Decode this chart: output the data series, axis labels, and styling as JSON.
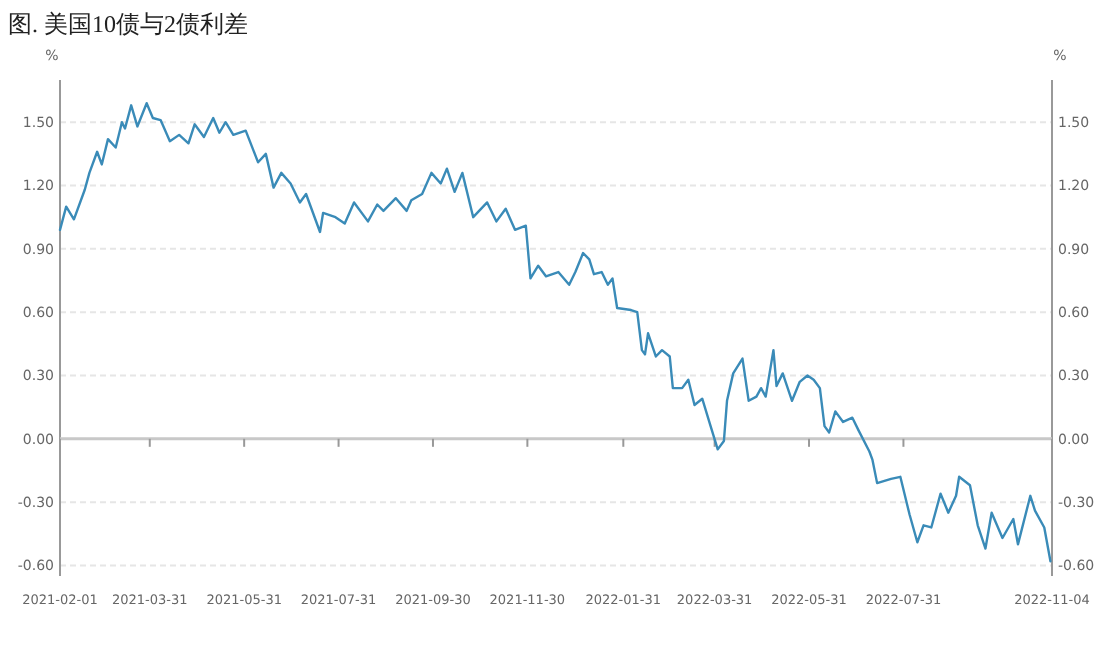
{
  "chart_data": {
    "type": "line",
    "title": "图. 美国10债与2债利差",
    "ylabel": "%",
    "y2label": "%",
    "x": [
      "2021-02-01",
      "2021-02-05",
      "2021-02-10",
      "2021-02-17",
      "2021-02-20",
      "2021-02-25",
      "2021-02-28",
      "2021-03-04",
      "2021-03-09",
      "2021-03-13",
      "2021-03-15",
      "2021-03-19",
      "2021-03-23",
      "2021-03-29",
      "2021-04-02",
      "2021-04-07",
      "2021-04-13",
      "2021-04-19",
      "2021-04-25",
      "2021-04-29",
      "2021-05-05",
      "2021-05-11",
      "2021-05-15",
      "2021-05-19",
      "2021-05-24",
      "2021-06-01",
      "2021-06-09",
      "2021-06-14",
      "2021-06-19",
      "2021-06-24",
      "2021-06-30",
      "2021-07-06",
      "2021-07-10",
      "2021-07-19",
      "2021-07-21",
      "2021-07-29",
      "2021-08-04",
      "2021-08-10",
      "2021-08-19",
      "2021-08-25",
      "2021-08-29",
      "2021-09-06",
      "2021-09-13",
      "2021-09-16",
      "2021-09-23",
      "2021-09-29",
      "2021-10-05",
      "2021-10-09",
      "2021-10-14",
      "2021-10-19",
      "2021-10-26",
      "2021-11-04",
      "2021-11-10",
      "2021-11-16",
      "2021-11-22",
      "2021-11-29",
      "2021-12-02",
      "2021-12-07",
      "2021-12-12",
      "2021-12-20",
      "2021-12-27",
      "2021-12-31",
      "2022-01-05",
      "2022-01-09",
      "2022-01-12",
      "2022-01-17",
      "2022-01-21",
      "2022-01-24",
      "2022-01-27",
      "2022-02-05",
      "2022-02-09",
      "2022-02-12",
      "2022-02-14",
      "2022-02-16",
      "2022-02-21",
      "2022-02-25",
      "2022-03-02",
      "2022-03-04",
      "2022-03-10",
      "2022-03-14",
      "2022-03-18",
      "2022-03-23",
      "2022-03-28",
      "2022-04-02",
      "2022-04-06",
      "2022-04-08",
      "2022-04-12",
      "2022-04-18",
      "2022-04-22",
      "2022-04-27",
      "2022-04-30",
      "2022-05-03",
      "2022-05-08",
      "2022-05-10",
      "2022-05-14",
      "2022-05-20",
      "2022-05-25",
      "2022-05-30",
      "2022-06-03",
      "2022-06-07",
      "2022-06-10",
      "2022-06-13",
      "2022-06-17",
      "2022-06-22",
      "2022-06-28",
      "2022-07-02",
      "2022-07-09",
      "2022-07-11",
      "2022-07-14",
      "2022-07-23",
      "2022-07-29",
      "2022-08-04",
      "2022-08-09",
      "2022-08-13",
      "2022-08-18",
      "2022-08-24",
      "2022-08-29",
      "2022-09-03",
      "2022-09-05",
      "2022-09-12",
      "2022-09-17",
      "2022-09-22",
      "2022-09-26",
      "2022-10-03",
      "2022-10-10",
      "2022-10-13",
      "2022-10-21",
      "2022-10-24",
      "2022-10-30",
      "2022-11-03"
    ],
    "series": [
      {
        "color": "#3a8bb8",
        "values": [
          0.99,
          1.1,
          1.04,
          1.18,
          1.26,
          1.36,
          1.3,
          1.42,
          1.38,
          1.5,
          1.47,
          1.58,
          1.48,
          1.59,
          1.52,
          1.51,
          1.41,
          1.44,
          1.4,
          1.49,
          1.43,
          1.52,
          1.45,
          1.5,
          1.44,
          1.46,
          1.31,
          1.35,
          1.19,
          1.26,
          1.21,
          1.12,
          1.16,
          0.98,
          1.07,
          1.05,
          1.02,
          1.12,
          1.03,
          1.11,
          1.08,
          1.14,
          1.08,
          1.13,
          1.16,
          1.26,
          1.21,
          1.28,
          1.17,
          1.26,
          1.05,
          1.12,
          1.03,
          1.09,
          0.99,
          1.01,
          0.76,
          0.82,
          0.77,
          0.79,
          0.73,
          0.79,
          0.88,
          0.85,
          0.78,
          0.79,
          0.73,
          0.76,
          0.62,
          0.61,
          0.6,
          0.42,
          0.4,
          0.5,
          0.39,
          0.42,
          0.39,
          0.24,
          0.24,
          0.28,
          0.16,
          0.19,
          0.07,
          -0.05,
          -0.01,
          0.18,
          0.31,
          0.38,
          0.18,
          0.2,
          0.24,
          0.2,
          0.42,
          0.25,
          0.31,
          0.18,
          0.27,
          0.3,
          0.28,
          0.24,
          0.06,
          0.03,
          0.13,
          0.08,
          0.1,
          0.04,
          -0.06,
          -0.1,
          -0.21,
          -0.19,
          -0.18,
          -0.36,
          -0.49,
          -0.41,
          -0.42,
          -0.26,
          -0.35,
          -0.27,
          -0.18,
          -0.22,
          -0.41,
          -0.52,
          -0.35,
          -0.47,
          -0.38,
          -0.5,
          -0.27,
          -0.34,
          -0.42,
          -0.58
        ]
      }
    ],
    "xlim": [
      "2021-02-01",
      "2022-11-04"
    ],
    "xticks": [
      "2021-02-01",
      "2021-03-31",
      "2021-05-31",
      "2021-07-31",
      "2021-09-30",
      "2021-11-30",
      "2022-01-31",
      "2022-03-31",
      "2022-05-31",
      "2022-07-31",
      "2022-11-04"
    ],
    "ylim": [
      -0.65,
      1.7
    ],
    "yticks": [
      {
        "value": -0.6,
        "label": "-0.60"
      },
      {
        "value": -0.3,
        "label": "-0.30"
      },
      {
        "value": 0,
        "label": "0.00"
      },
      {
        "value": 0.3,
        "label": "0.30"
      },
      {
        "value": 0.6,
        "label": "0.60"
      },
      {
        "value": 0.9,
        "label": "0.90"
      },
      {
        "value": 1.2,
        "label": "1.20"
      },
      {
        "value": 1.5,
        "label": "1.50"
      }
    ],
    "y2lim": [
      -0.65,
      1.7
    ],
    "y2ticks": [
      {
        "value": -0.6,
        "label": "-0.60"
      },
      {
        "value": -0.3,
        "label": "-0.30"
      },
      {
        "value": 0,
        "label": "0.00"
      },
      {
        "value": 0.3,
        "label": "0.30"
      },
      {
        "value": 0.6,
        "label": "0.60"
      },
      {
        "value": 0.9,
        "label": "0.90"
      },
      {
        "value": 1.2,
        "label": "1.20"
      },
      {
        "value": 1.5,
        "label": "1.50"
      }
    ],
    "grid": "y",
    "marker": "none",
    "line_style": "solid"
  }
}
